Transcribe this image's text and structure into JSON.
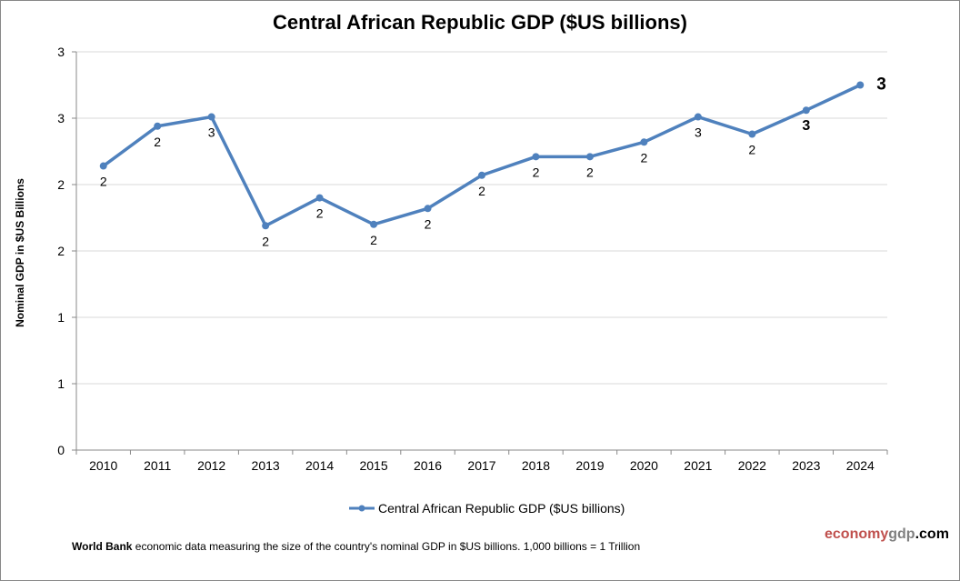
{
  "chart_data": {
    "type": "line",
    "title": "Central African Republic GDP ($US billions)",
    "ylabel": "Nominal GDP in $US Billions",
    "xlabel": "",
    "ylim": [
      0,
      3
    ],
    "y_ticks": [
      0,
      0.5,
      1,
      1.5,
      2,
      2.5,
      3
    ],
    "y_tick_labels": [
      "0",
      "1",
      "1",
      "2",
      "2",
      "3",
      "3"
    ],
    "grid": "horizontal",
    "legend_position": "bottom",
    "categories": [
      "2010",
      "2011",
      "2012",
      "2013",
      "2014",
      "2015",
      "2016",
      "2017",
      "2018",
      "2019",
      "2020",
      "2021",
      "2022",
      "2023",
      "2024"
    ],
    "series": [
      {
        "name": "Central African Republic GDP ($US billions)",
        "color": "#4f81bd",
        "values": [
          2.14,
          2.44,
          2.51,
          1.69,
          1.9,
          1.7,
          1.82,
          2.07,
          2.21,
          2.21,
          2.32,
          2.51,
          2.38,
          2.56,
          2.75
        ],
        "data_labels": [
          "2",
          "2",
          "3",
          "2",
          "2",
          "2",
          "2",
          "2",
          "2",
          "2",
          "2",
          "3",
          "2",
          "3",
          "3"
        ]
      }
    ]
  },
  "footer": {
    "source_bold": "World Bank",
    "text": " economic data  measuring the size of the country's nominal GDP in $US billions. 1,000 billions = 1 Trillion"
  },
  "brand": {
    "part1": "economy",
    "part2": "gdp",
    "part3": ".com",
    "color1": "#c0504d",
    "color2": "#808080",
    "color3": "#000000"
  }
}
